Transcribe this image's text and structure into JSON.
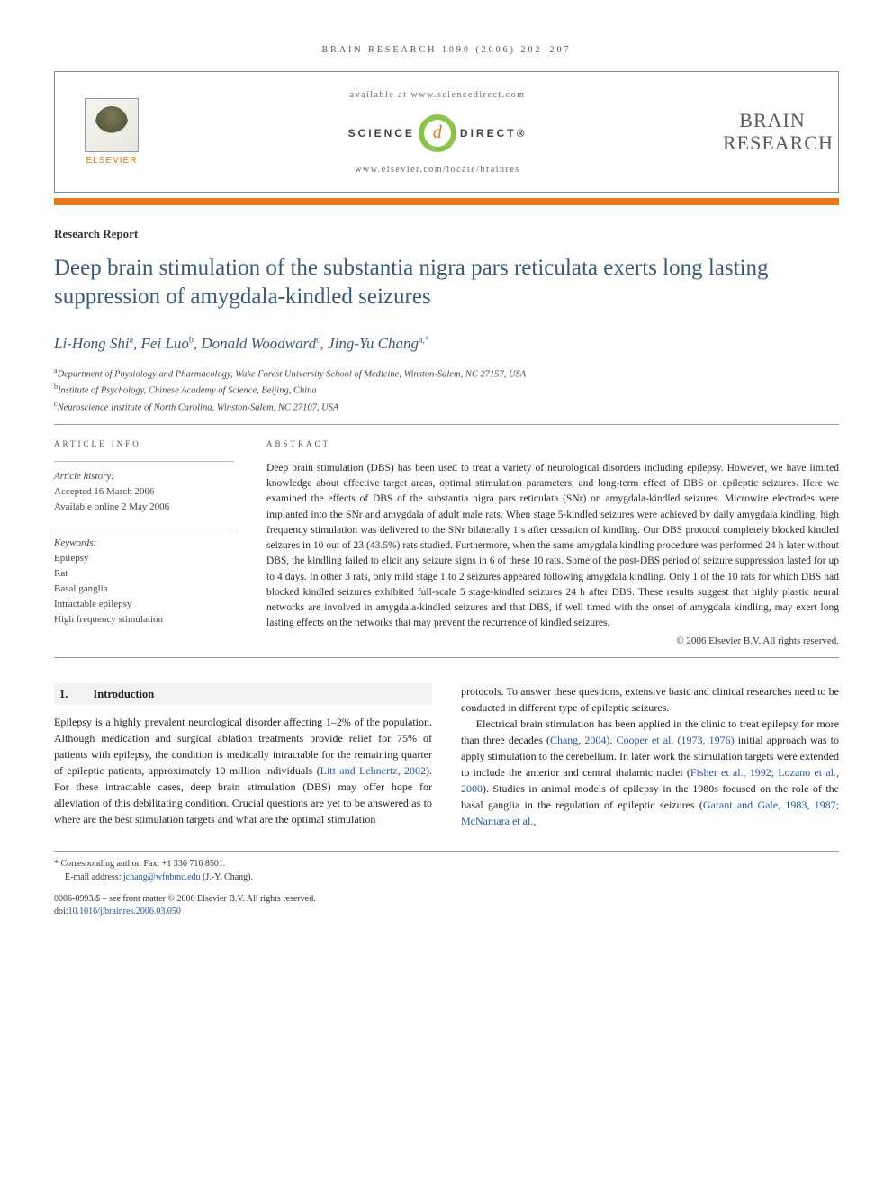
{
  "running_head": "BRAIN RESEARCH 1090 (2006) 202–207",
  "header": {
    "elsevier": "ELSEVIER",
    "available": "available at www.sciencedirect.com",
    "scidirect_left": "SCIENCE",
    "scidirect_badge": "d",
    "scidirect_right": "DIRECT®",
    "locate": "www.elsevier.com/locate/brainres",
    "journal_line1": "BRAIN",
    "journal_line2": "RESEARCH"
  },
  "article_type": "Research Report",
  "title": "Deep brain stimulation of the substantia nigra pars reticulata exerts long lasting suppression of amygdala-kindled seizures",
  "authors_html": "Li-Hong Shi<sup>a</sup>, Fei Luo<sup>b</sup>, Donald Woodward<sup>c</sup>, Jing-Yu Chang<sup>a,*</sup>",
  "affiliations": [
    {
      "sup": "a",
      "text": "Department of Physiology and Pharmacology, Wake Forest University School of Medicine, Winston-Salem, NC 27157, USA"
    },
    {
      "sup": "b",
      "text": "Institute of Psychology, Chinese Academy of Science, Beijing, China"
    },
    {
      "sup": "c",
      "text": "Neuroscience Institute of North Carolina, Winston-Salem, NC 27107, USA"
    }
  ],
  "info": {
    "label": "ARTICLE INFO",
    "history_head": "Article history:",
    "history_lines": [
      "Accepted 16 March 2006",
      "Available online 2 May 2006"
    ],
    "keywords_head": "Keywords:",
    "keywords": [
      "Epilepsy",
      "Rat",
      "Basal ganglia",
      "Intractable epilepsy",
      "High frequency stimulation"
    ]
  },
  "abstract": {
    "label": "ABSTRACT",
    "text": "Deep brain stimulation (DBS) has been used to treat a variety of neurological disorders including epilepsy. However, we have limited knowledge about effective target areas, optimal stimulation parameters, and long-term effect of DBS on epileptic seizures. Here we examined the effects of DBS of the substantia nigra pars reticulata (SNr) on amygdala-kindled seizures. Microwire electrodes were implanted into the SNr and amygdala of adult male rats. When stage 5-kindled seizures were achieved by daily amygdala kindling, high frequency stimulation was delivered to the SNr bilaterally 1 s after cessation of kindling. Our DBS protocol completely blocked kindled seizures in 10 out of 23 (43.5%) rats studied. Furthermore, when the same amygdala kindling procedure was performed 24 h later without DBS, the kindling failed to elicit any seizure signs in 6 of these 10 rats. Some of the post-DBS period of seizure suppression lasted for up to 4 days. In other 3 rats, only mild stage 1 to 2 seizures appeared following amygdala kindling. Only 1 of the 10 rats for which DBS had blocked kindled seizures exhibited full-scale 5 stage-kindled seizures 24 h after DBS. These results suggest that highly plastic neural networks are involved in amygdala-kindled seizures and that DBS, if well timed with the onset of amygdala kindling, may exert long lasting effects on the networks that may prevent the recurrence of kindled seizures.",
    "copyright": "© 2006 Elsevier B.V. All rights reserved."
  },
  "body": {
    "section_num": "1.",
    "section_title": "Introduction",
    "para1": "Epilepsy is a highly prevalent neurological disorder affecting 1–2% of the population. Although medication and surgical ablation treatments provide relief for 75% of patients with epilepsy, the condition is medically intractable for the remaining quarter of epileptic patients, approximately 10 million individuals (",
    "ref1": "Litt and Lehnertz, 2002",
    "para1b": "). For these intractable cases, deep brain stimulation (DBS) may offer hope for alleviation of this debilitating condition. Crucial questions are yet to be answered as to where are the best stimulation targets and what are the optimal stimulation",
    "para2a": "protocols. To answer these questions, extensive basic and clinical researches need to be conducted in different type of epileptic seizures.",
    "para3a": "Electrical brain stimulation has been applied in the clinic to treat epilepsy for more than three decades (",
    "ref2": "Chang, 2004",
    "para3b": "). ",
    "ref3": "Cooper et al. (1973, 1976)",
    "para3c": " initial approach was to apply stimulation to the cerebellum. In later work the stimulation targets were extended to include the anterior and central thalamic nuclei (",
    "ref4": "Fisher et al., 1992; Lozano et al., 2000",
    "para3d": "). Studies in animal models of epilepsy in the 1980s focused on the role of the basal ganglia in the regulation of epileptic seizures (",
    "ref5": "Garant and Gale, 1983, 1987; McNamara et al.,"
  },
  "footer": {
    "corr_label": "* Corresponding author.",
    "corr_fax": " Fax: +1 336 716 8501.",
    "email_label": "E-mail address: ",
    "email": "jchang@wfubmc.edu",
    "email_tail": " (J.-Y. Chang).",
    "issn_line": "0006-8993/$ – see front matter © 2006 Elsevier B.V. All rights reserved.",
    "doi_label": "doi:",
    "doi": "10.1016/j.brainres.2006.03.050"
  },
  "colors": {
    "accent_orange": "#e67817",
    "link_blue": "#2456a8",
    "title_blue": "#3a5a7a",
    "scidirect_green": "#8bc34a"
  }
}
